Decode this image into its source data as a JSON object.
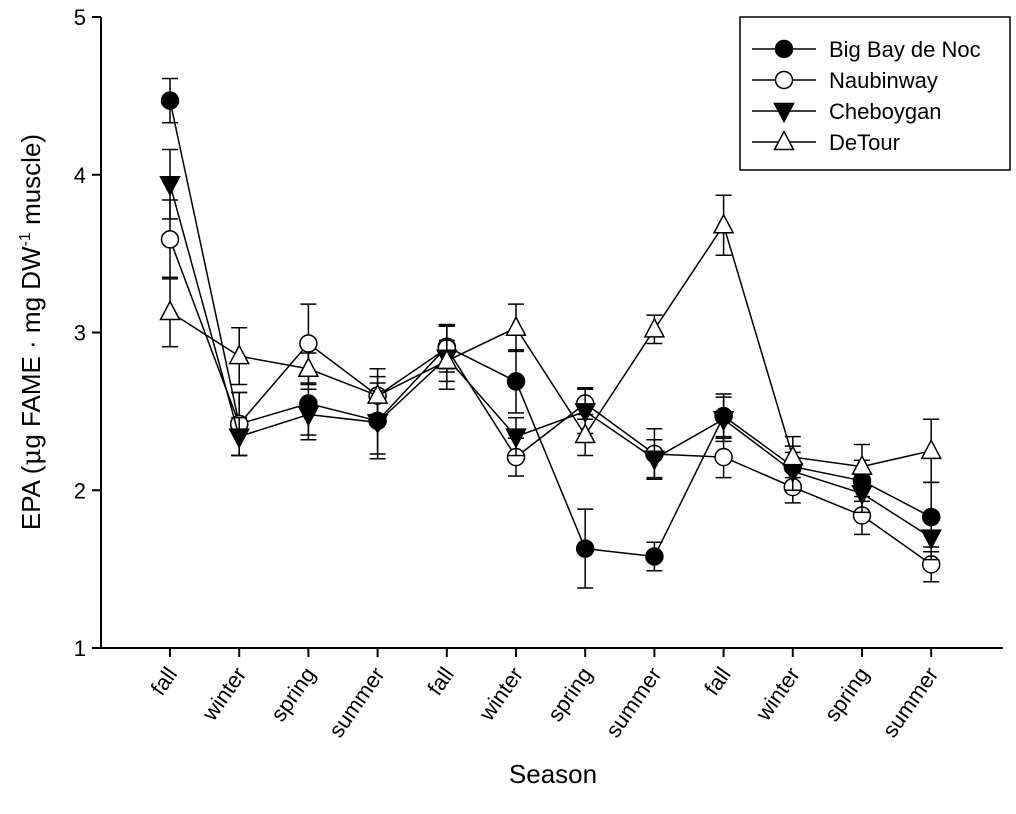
{
  "chart_data": {
    "type": "line",
    "xlabel": "Season",
    "ylabel": {
      "pre": "EPA (",
      "mu": "μ",
      "mid": "g FAME · mg DW",
      "sup": "-1",
      "post": " muscle)"
    },
    "ylim": [
      1,
      5
    ],
    "yticks": [
      "1",
      "2",
      "3",
      "4",
      "5"
    ],
    "categories": [
      "fall",
      "winter",
      "spring",
      "summer",
      "fall",
      "winter",
      "spring",
      "summer",
      "fall",
      "winter",
      "spring",
      "summer"
    ],
    "legend_position": "top-right",
    "series": [
      {
        "name": "Big Bay de Noc",
        "marker": "circle-filled",
        "values": [
          4.47,
          2.42,
          2.55,
          2.44,
          2.91,
          2.69,
          1.63,
          1.58,
          2.47,
          2.15,
          2.06,
          1.83
        ],
        "errors": [
          0.14,
          0.2,
          0.2,
          0.24,
          0.14,
          0.2,
          0.25,
          0.09,
          0.14,
          0.13,
          0.13,
          0.22
        ]
      },
      {
        "name": "Naubinway",
        "marker": "circle-open",
        "values": [
          3.59,
          2.42,
          2.93,
          2.6,
          2.9,
          2.21,
          2.55,
          2.23,
          2.21,
          2.02,
          1.84,
          1.53
        ],
        "errors": [
          0.25,
          0.2,
          0.25,
          0.17,
          0.15,
          0.12,
          0.1,
          0.16,
          0.13,
          0.1,
          0.12,
          0.11
        ]
      },
      {
        "name": "Cheboygan",
        "marker": "triangle-down-filled",
        "values": [
          3.94,
          2.34,
          2.48,
          2.43,
          2.84,
          2.34,
          2.5,
          2.2,
          2.45,
          2.12,
          1.98,
          1.7
        ],
        "errors": [
          0.22,
          0.12,
          0.16,
          0.2,
          0.2,
          0.12,
          0.14,
          0.12,
          0.14,
          0.12,
          0.12,
          0.14
        ]
      },
      {
        "name": "DeTour",
        "marker": "triangle-up-open",
        "values": [
          3.13,
          2.85,
          2.77,
          2.6,
          2.82,
          3.03,
          2.35,
          3.02,
          3.68,
          2.21,
          2.15,
          2.25
        ],
        "errors": [
          0.22,
          0.18,
          0.1,
          0.12,
          0.13,
          0.15,
          0.13,
          0.09,
          0.19,
          0.13,
          0.14,
          0.2
        ]
      }
    ]
  }
}
